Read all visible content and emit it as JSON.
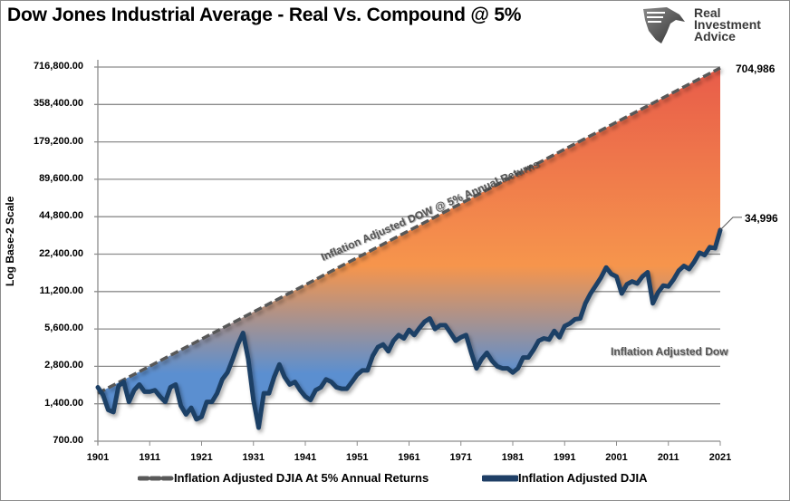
{
  "title": "Dow Jones Industrial Average - Real Vs. Compound @ 5%",
  "logo": {
    "icon": "eagle-shield-icon",
    "line1": "Real",
    "line2": "Investment",
    "line3": "Advice"
  },
  "chart_data": {
    "type": "area",
    "title": "Dow Jones Industrial Average - Real Vs. Compound @ 5%",
    "xlabel": "",
    "ylabel": "Log Base-2 Scale",
    "yscale": "log2",
    "ylim": [
      700,
      716800
    ],
    "xlim": [
      1901,
      2021
    ],
    "grid": true,
    "y_ticks": [
      "716,800.00",
      "358,400.00",
      "179,200.00",
      "89,600.00",
      "44,800.00",
      "22,400.00",
      "11,200.00",
      "5,600.00",
      "2,800.00",
      "1,400.00",
      "700.00"
    ],
    "y_tick_values": [
      716800,
      358400,
      179200,
      89600,
      44800,
      22400,
      11200,
      5600,
      2800,
      1400,
      700
    ],
    "x_ticks": [
      "1901",
      "1911",
      "1921",
      "1931",
      "1941",
      "1951",
      "1961",
      "1971",
      "1981",
      "1991",
      "2001",
      "2011",
      "2021"
    ],
    "legend_position": "bottom",
    "colors": {
      "compound_line": "#595959",
      "real_line": "#1f3f66",
      "fill_top": "#e85c4a",
      "fill_mid": "#f6954c",
      "fill_bottom": "#5b8fd0"
    },
    "series": [
      {
        "name": "Inflation Adjusted DJIA At 5% Annual Returns",
        "style": "dashed",
        "x": [
          1901,
          2021
        ],
        "values": [
          1700,
          704986
        ]
      },
      {
        "name": "Inflation Adjusted DJIA",
        "style": "solid",
        "x": [
          1901,
          1902,
          1903,
          1904,
          1905,
          1906,
          1907,
          1908,
          1909,
          1910,
          1911,
          1912,
          1913,
          1914,
          1915,
          1916,
          1917,
          1918,
          1919,
          1920,
          1921,
          1922,
          1923,
          1924,
          1925,
          1926,
          1927,
          1928,
          1929,
          1930,
          1931,
          1932,
          1933,
          1934,
          1935,
          1936,
          1937,
          1938,
          1939,
          1940,
          1941,
          1942,
          1943,
          1944,
          1945,
          1946,
          1947,
          1948,
          1949,
          1950,
          1951,
          1952,
          1953,
          1954,
          1955,
          1956,
          1957,
          1958,
          1959,
          1960,
          1961,
          1962,
          1963,
          1964,
          1965,
          1966,
          1967,
          1968,
          1969,
          1970,
          1971,
          1972,
          1973,
          1974,
          1975,
          1976,
          1977,
          1978,
          1979,
          1980,
          1981,
          1982,
          1983,
          1984,
          1985,
          1986,
          1987,
          1988,
          1989,
          1990,
          1991,
          1992,
          1993,
          1994,
          1995,
          1996,
          1997,
          1998,
          1999,
          2000,
          2001,
          2002,
          2003,
          2004,
          2005,
          2006,
          2007,
          2008,
          2009,
          2010,
          2011,
          2012,
          2013,
          2014,
          2015,
          2016,
          2017,
          2018,
          2019,
          2020,
          2021
        ],
        "values": [
          1900,
          1650,
          1250,
          1200,
          1950,
          2100,
          1450,
          1800,
          2000,
          1750,
          1750,
          1800,
          1600,
          1450,
          1900,
          2000,
          1350,
          1150,
          1300,
          1050,
          1100,
          1450,
          1450,
          1700,
          2200,
          2500,
          3200,
          4200,
          5200,
          3200,
          1500,
          900,
          1700,
          1700,
          2300,
          2900,
          2300,
          2000,
          2100,
          1800,
          1600,
          1500,
          1800,
          1900,
          2200,
          2100,
          1900,
          1850,
          1850,
          2100,
          2400,
          2600,
          2600,
          3400,
          4000,
          4200,
          3700,
          4500,
          5000,
          4700,
          5500,
          5000,
          5700,
          6400,
          6800,
          5600,
          6000,
          6000,
          5200,
          4500,
          4800,
          5000,
          3600,
          2700,
          3200,
          3600,
          3100,
          2800,
          2700,
          2700,
          2500,
          2700,
          3300,
          3300,
          3800,
          4500,
          4700,
          4600,
          5400,
          4800,
          5900,
          6200,
          6700,
          6800,
          9000,
          10800,
          12500,
          14500,
          17500,
          15500,
          14800,
          10800,
          12800,
          13500,
          13000,
          14800,
          16000,
          9000,
          11000,
          12500,
          12300,
          14000,
          16500,
          18000,
          17000,
          19500,
          23000,
          22000,
          25500,
          25000,
          34996
        ]
      }
    ],
    "annotations": [
      {
        "text": "704,986",
        "target": "compound end"
      },
      {
        "text": "34,996",
        "target": "real end"
      },
      {
        "text": "Inflation Adjusted DOW @ 5% Annual Returns",
        "target": "compound line label"
      },
      {
        "text": "Inflation Adjusted Dow",
        "target": "real line label"
      }
    ]
  },
  "legend": [
    {
      "label": "Inflation Adjusted DJIA At 5% Annual Returns",
      "icon": "dashed-line-icon"
    },
    {
      "label": "Inflation Adjusted DJIA",
      "icon": "solid-line-icon"
    }
  ]
}
